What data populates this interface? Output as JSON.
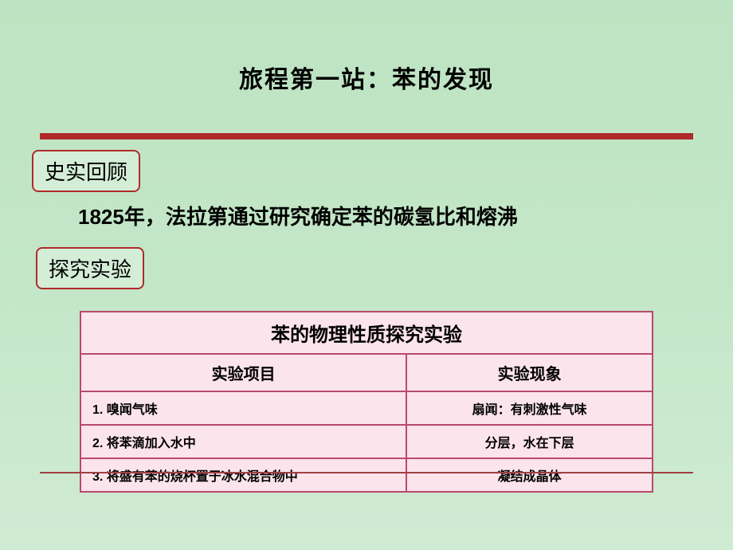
{
  "slide": {
    "title": "旅程第一站：苯的发现",
    "sections": {
      "history": {
        "badge": "史实回顾",
        "text": "1825年，法拉第通过研究确定苯的碳氢比和熔沸"
      },
      "experiment": {
        "badge": "探究实验"
      }
    },
    "table": {
      "title": "苯的物理性质探究实验",
      "columns": [
        "实验项目",
        "实验现象"
      ],
      "rows": [
        [
          "1. 嗅闻气味",
          "扇闻：有刺激性气味"
        ],
        [
          "2. 将苯滴加入水中",
          "分层，水在下层"
        ],
        [
          "3. 将盛有苯的烧杯置于冰水混合物中",
          "凝结成晶体"
        ]
      ],
      "styling": {
        "background_color": "#fce4ec",
        "border_color": "#b84a6a",
        "title_fontsize": 24,
        "header_fontsize": 20,
        "cell_fontsize": 16,
        "col_widths": [
          "57%",
          "43%"
        ]
      }
    },
    "styling": {
      "slide_bg_gradient": [
        "#bde4c2",
        "#c3e6c8",
        "#d0ebd3"
      ],
      "divider_color": "#b02a2a",
      "badge_border_color": "#b02a2a",
      "badge_bg_color": "#d3edd6",
      "title_fontsize": 30,
      "badge_fontsize": 26,
      "body_fontsize": 26
    }
  }
}
